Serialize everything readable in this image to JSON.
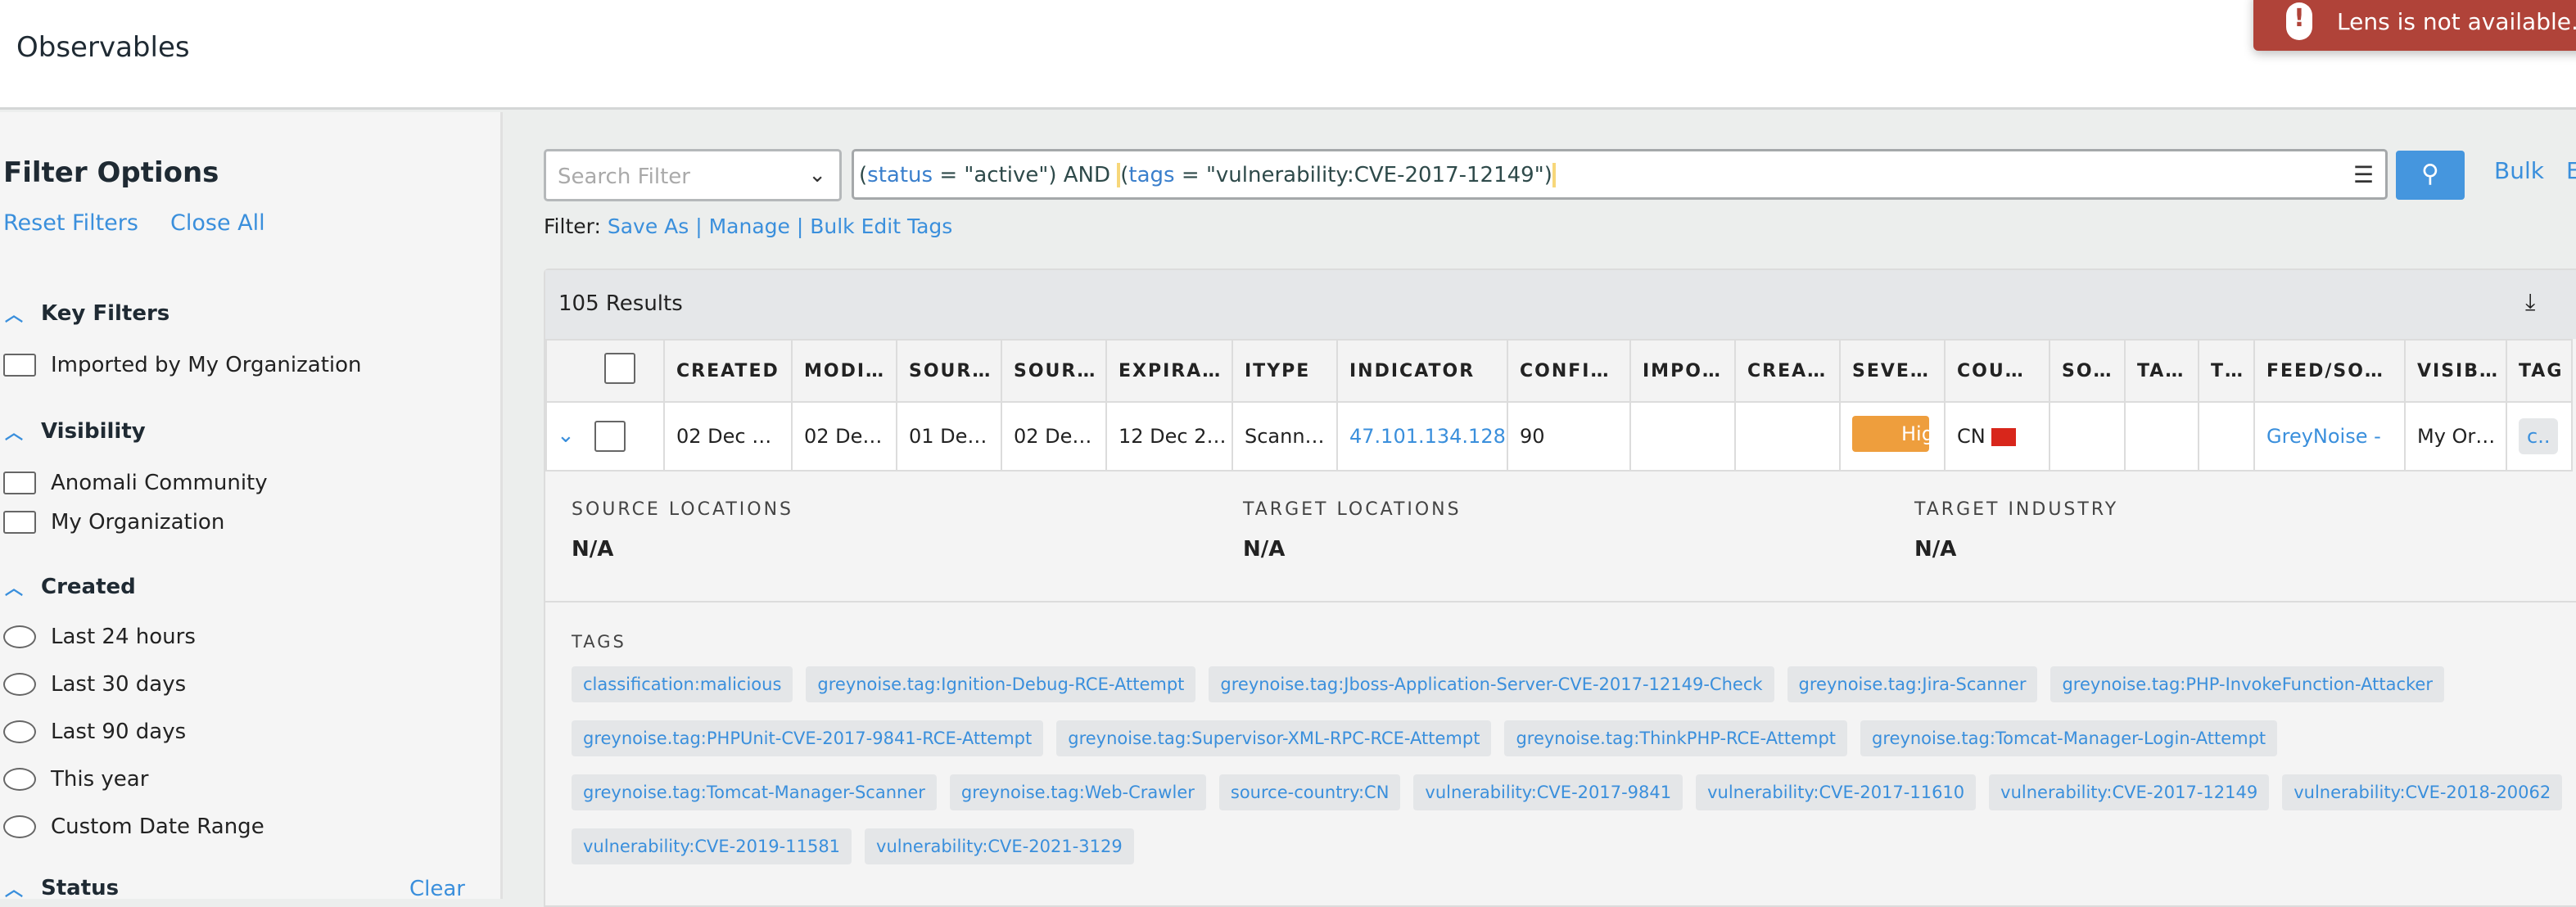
{
  "header": {
    "title": "Observables"
  },
  "toast": {
    "message": "Lens is not available.",
    "color": "#b04339"
  },
  "sidebar": {
    "title": "Filter Options",
    "reset": "Reset Filters",
    "close_all": "Close All",
    "key_filters": {
      "label": "Key Filters",
      "items": [
        "Imported by My Organization"
      ]
    },
    "visibility": {
      "label": "Visibility",
      "items": [
        "Anomali Community",
        "My Organization"
      ]
    },
    "created": {
      "label": "Created",
      "items": [
        "Last 24 hours",
        "Last 30 days",
        "Last 90 days",
        "This year",
        "Custom Date Range"
      ]
    },
    "status": {
      "label": "Status",
      "clear": "Clear"
    }
  },
  "search": {
    "placeholder": "Search Filter",
    "query": {
      "t1": "(",
      "k1": "status",
      "eq1": " = ",
      "v1": "\"active\") AND ",
      "p1": "(",
      "k2": "tags",
      "eq2": " = ",
      "v2": "\"vulnerability:CVE-2017-12149\"",
      "p2": ")"
    },
    "bulk": "Bulk",
    "accent": "#4596de"
  },
  "filter_bar": {
    "label": "Filter:",
    "links": "Save As | Manage | Bulk Edit Tags"
  },
  "results": {
    "count": "105 Results",
    "columns": [
      "CREATED",
      "MODI…",
      "SOUR…",
      "SOUR…",
      "EXPIRA…",
      "ITYPE",
      "INDICATOR",
      "CONFI…",
      "IMPO…",
      "CREA…",
      "SEVE…",
      "COU…",
      "SO…",
      "TA…",
      "T…",
      "FEED/SO…",
      "VISIB…",
      "TAG"
    ],
    "row": {
      "created": "02 Dec …",
      "modified": "02 De…",
      "source_created": "01 De…",
      "source_modified": "02 De…",
      "expiration": "12 Dec 2…",
      "itype": "Scann…",
      "indicator": "47.101.134.128",
      "confidence": "90",
      "severity": "Hig",
      "country": "CN",
      "feed": "GreyNoise -",
      "visibility": "My Or…",
      "tag": "c.."
    },
    "detail": {
      "source_locations": "SOURCE LOCATIONS",
      "source_val": "N/A",
      "target_locations": "TARGET LOCATIONS",
      "target_val": "N/A",
      "target_industry": "TARGET INDUSTRY",
      "industry_val": "N/A",
      "tags_label": "TAGS",
      "tags": [
        [
          "classification:malicious",
          "greynoise.tag:Ignition-Debug-RCE-Attempt",
          "greynoise.tag:Jboss-Application-Server-CVE-2017-12149-Check",
          "greynoise.tag:Jira-Scanner",
          "greynoise.tag:PHP-InvokeFunction-Attacker"
        ],
        [
          "greynoise.tag:PHPUnit-CVE-2017-9841-RCE-Attempt",
          "greynoise.tag:Supervisor-XML-RPC-RCE-Attempt",
          "greynoise.tag:ThinkPHP-RCE-Attempt",
          "greynoise.tag:Tomcat-Manager-Login-Attempt"
        ],
        [
          "greynoise.tag:Tomcat-Manager-Scanner",
          "greynoise.tag:Web-Crawler",
          "source-country:CN",
          "vulnerability:CVE-2017-9841",
          "vulnerability:CVE-2017-11610",
          "vulnerability:CVE-2017-12149",
          "vulnerability:CVE-2018-20062"
        ],
        [
          "vulnerability:CVE-2019-11581",
          "vulnerability:CVE-2021-3129"
        ]
      ]
    }
  }
}
